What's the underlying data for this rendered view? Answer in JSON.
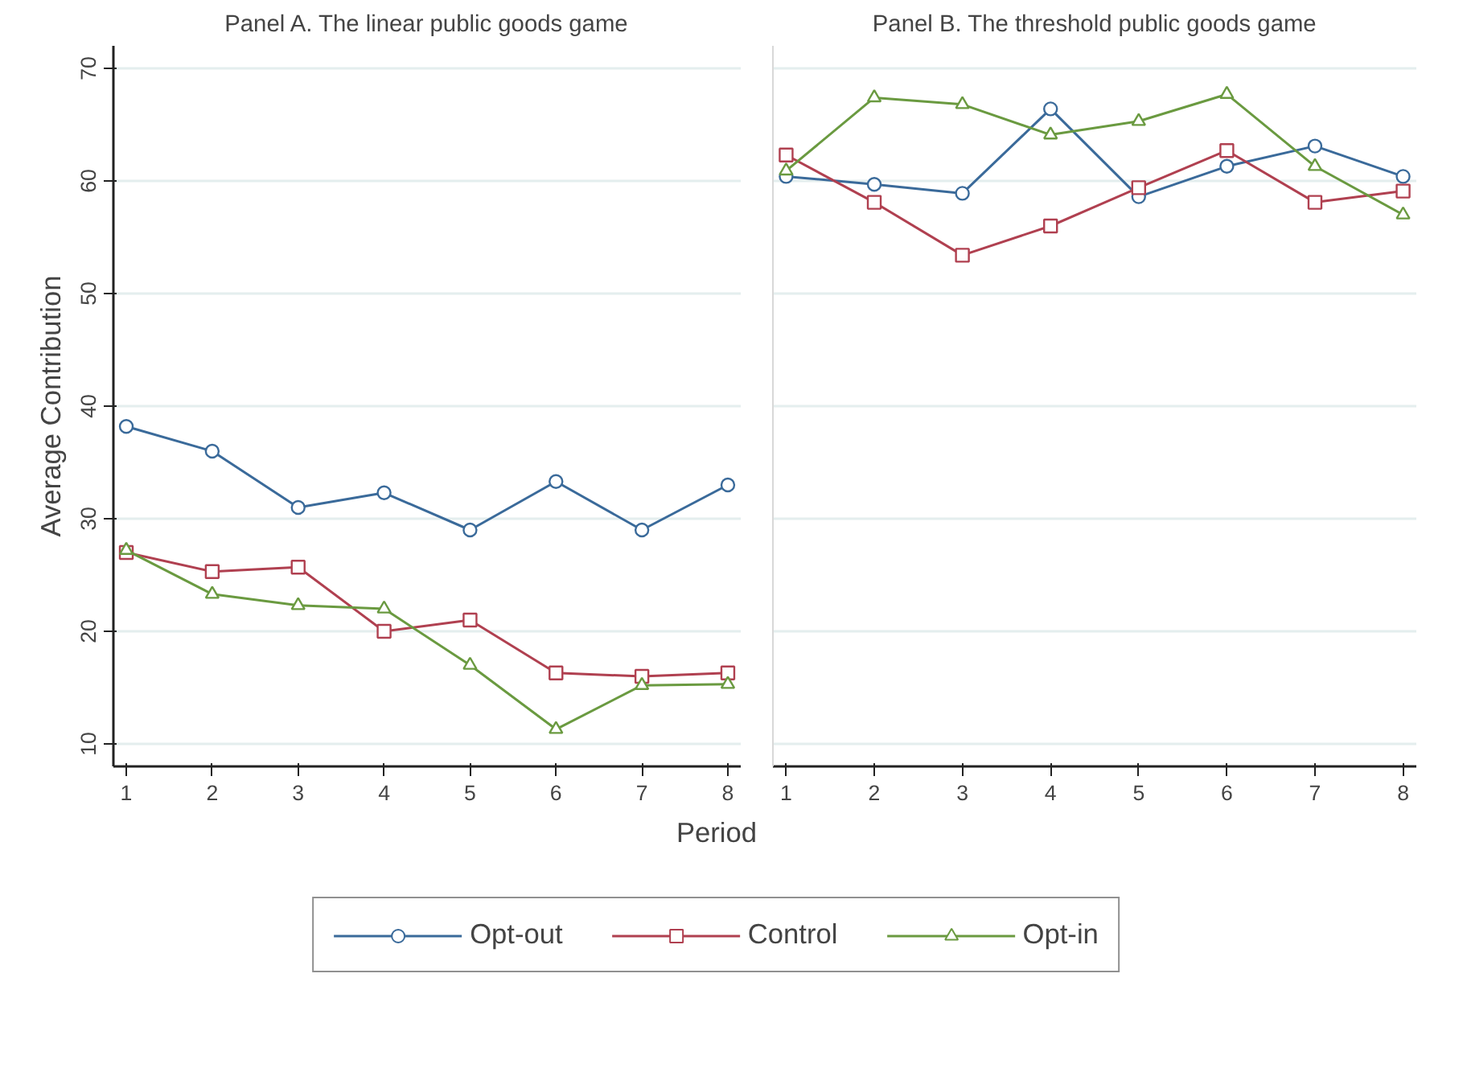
{
  "chart_data": [
    {
      "type": "line",
      "title": "Panel A. The linear public goods game",
      "xlabel": "Period",
      "ylabel": "Average Contribution",
      "x": [
        1,
        2,
        3,
        4,
        5,
        6,
        7,
        8
      ],
      "xlim": [
        0.85,
        8.15
      ],
      "xticks": [
        1,
        2,
        3,
        4,
        5,
        6,
        7,
        8
      ],
      "ylim": [
        8,
        72
      ],
      "yticks": [
        10,
        20,
        30,
        40,
        50,
        60,
        70
      ],
      "grid": "y",
      "legend": "bottom",
      "series": [
        {
          "name": "Opt-out",
          "color": "#3a6a9a",
          "marker": "circle",
          "values": [
            38.2,
            36,
            31,
            32.3,
            29,
            33.3,
            29,
            33
          ]
        },
        {
          "name": "Control",
          "color": "#b04050",
          "marker": "square",
          "values": [
            27,
            25.3,
            25.7,
            20,
            21,
            16.3,
            16,
            16.3
          ]
        },
        {
          "name": "Opt-in",
          "color": "#6a9a40",
          "marker": "triangle",
          "values": [
            27.2,
            23.3,
            22.3,
            22,
            17,
            11.3,
            15.2,
            15.3
          ]
        }
      ]
    },
    {
      "type": "line",
      "title": "Panel B. The threshold public goods game",
      "x": [
        1,
        2,
        3,
        4,
        5,
        6,
        7,
        8
      ],
      "xlim": [
        0.85,
        8.15
      ],
      "xticks": [
        1,
        2,
        3,
        4,
        5,
        6,
        7,
        8
      ],
      "ylim": [
        8,
        72
      ],
      "yticks": [
        10,
        20,
        30,
        40,
        50,
        60,
        70
      ],
      "grid": "y",
      "tick_labels": "x",
      "series": [
        {
          "color": "#3a6a9a",
          "marker": "circle",
          "values": [
            60.4,
            59.7,
            58.9,
            66.4,
            58.6,
            61.3,
            63.1,
            60.4
          ]
        },
        {
          "color": "#b04050",
          "marker": "square",
          "values": [
            62.3,
            58.1,
            53.4,
            56,
            59.4,
            62.7,
            58.1,
            59.1
          ]
        },
        {
          "color": "#6a9a40",
          "marker": "triangle",
          "values": [
            60.9,
            67.4,
            66.8,
            64.1,
            65.3,
            67.7,
            61.3,
            57
          ]
        }
      ]
    }
  ]
}
